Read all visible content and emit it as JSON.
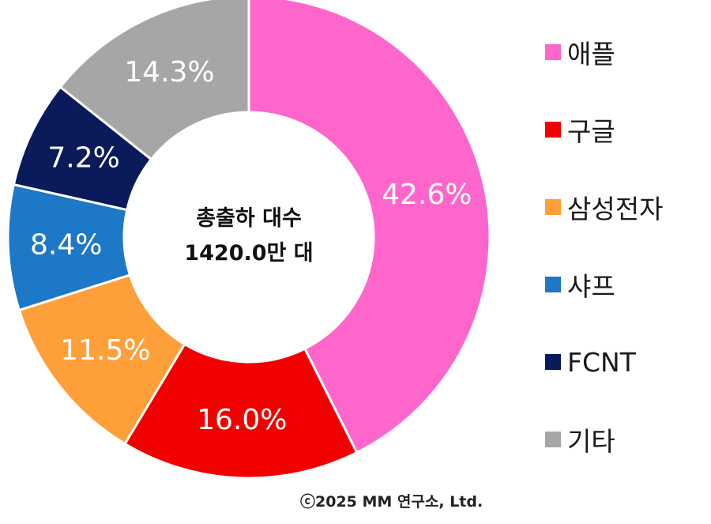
{
  "chart_data": {
    "type": "pie",
    "donut": true,
    "categories": [
      "애플",
      "구글",
      "삼성전자",
      "샤프",
      "FCNT",
      "기타"
    ],
    "values": [
      42.6,
      16.0,
      11.5,
      8.4,
      7.2,
      14.3
    ],
    "value_labels": [
      "42.6%",
      "16.0%",
      "11.5%",
      "8.4%",
      "7.2%",
      "14.3%"
    ],
    "colors": [
      "#FF66CC",
      "#F20000",
      "#FF9F3A",
      "#1D78C8",
      "#0A1A5A",
      "#A6A6A6"
    ],
    "center_text": [
      "총출하 대수",
      "1420.0만 대"
    ],
    "legend_position": "right"
  },
  "footer": {
    "copyright": "ⓒ2025 MM 연구소, Ltd."
  }
}
